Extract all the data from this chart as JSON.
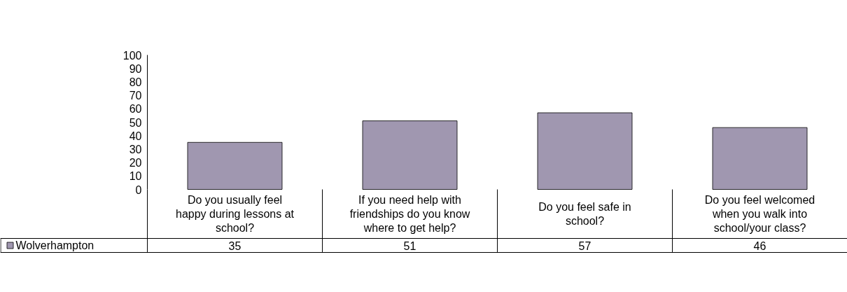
{
  "chart_data": {
    "type": "bar",
    "categories": [
      "Do you usually feel happy during lessons at school?",
      "If you need help with friendships do you know where to get help?",
      "Do you feel safe in school?",
      "Do you feel welcomed when you walk into school/your class?"
    ],
    "series": [
      {
        "name": "Wolverhampton",
        "color": "#a097b0",
        "values": [
          35,
          51,
          57,
          46
        ]
      }
    ],
    "ylim": [
      0,
      100
    ],
    "yticks": [
      0,
      10,
      20,
      30,
      40,
      50,
      60,
      70,
      80,
      90,
      100
    ],
    "grid": false,
    "legend": "bottom",
    "data_labels": true
  }
}
